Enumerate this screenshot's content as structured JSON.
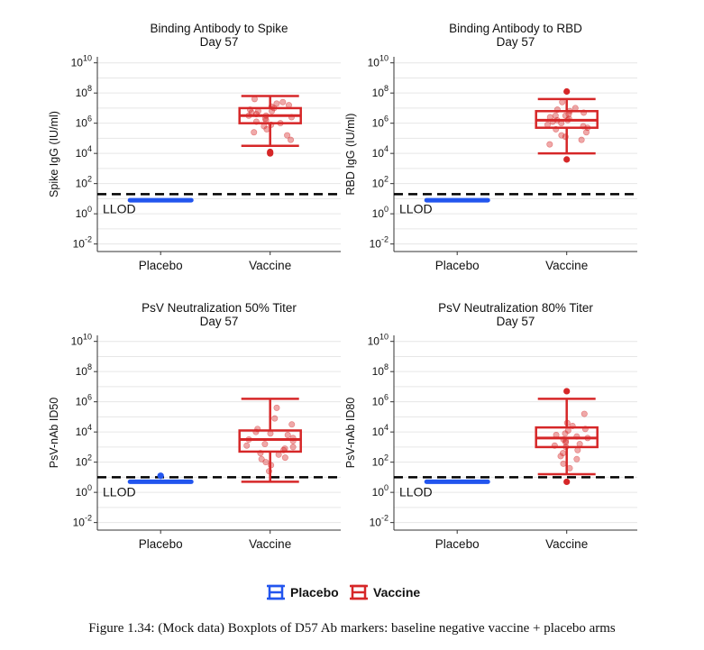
{
  "figure": {
    "caption": "Figure 1.34: (Mock data) Boxplots of D57 Ab markers: baseline negative vaccine + placebo arms"
  },
  "legend": {
    "entries": [
      {
        "label": "Placebo",
        "color": "#2255ee"
      },
      {
        "label": "Vaccine",
        "color": "#d62728"
      }
    ]
  },
  "colors": {
    "placebo": "#2255ee",
    "vaccine": "#d62728",
    "grid": "#e6e6e6",
    "axis": "#333333"
  },
  "chart_data": [
    {
      "type": "box",
      "title": "Binding Antibody to Spike",
      "subtitle": "Day 57",
      "ylabel": "Spike IgG (IU/ml)",
      "yscale": "log10",
      "ylim_exp": [
        -2.5,
        10.4
      ],
      "ytick_exponents": [
        -2,
        0,
        2,
        4,
        6,
        8,
        10
      ],
      "categories": [
        "Placebo",
        "Vaccine"
      ],
      "lod_exp": 1.3,
      "lod_label": "LLOD",
      "boxes": [
        {
          "group": "Placebo",
          "min_exp": 0.9,
          "q1_exp": 0.9,
          "median_exp": 0.9,
          "q3_exp": 0.9,
          "max_exp": 0.9,
          "outliers_exp": [],
          "points_exp": []
        },
        {
          "group": "Vaccine",
          "min_exp": 4.5,
          "q1_exp": 6.0,
          "median_exp": 6.5,
          "q3_exp": 7.0,
          "max_exp": 7.8,
          "outliers_exp": [
            4.1,
            4.0
          ],
          "points_exp": [
            7.6,
            7.4,
            7.3,
            7.2,
            7.1,
            7.0,
            6.9,
            6.8,
            6.8,
            6.7,
            6.6,
            6.5,
            6.5,
            6.4,
            6.3,
            6.2,
            6.1,
            6.0,
            5.9,
            5.8,
            5.6,
            5.4,
            5.2,
            4.9
          ]
        }
      ]
    },
    {
      "type": "box",
      "title": "Binding Antibody to RBD",
      "subtitle": "Day 57",
      "ylabel": "RBD IgG (IU/ml)",
      "yscale": "log10",
      "ylim_exp": [
        -2.5,
        10.4
      ],
      "ytick_exponents": [
        -2,
        0,
        2,
        4,
        6,
        8,
        10
      ],
      "categories": [
        "Placebo",
        "Vaccine"
      ],
      "lod_exp": 1.3,
      "lod_label": "LLOD",
      "boxes": [
        {
          "group": "Placebo",
          "min_exp": 0.9,
          "q1_exp": 0.9,
          "median_exp": 0.9,
          "q3_exp": 0.9,
          "max_exp": 0.9,
          "outliers_exp": [],
          "points_exp": []
        },
        {
          "group": "Vaccine",
          "min_exp": 4.0,
          "q1_exp": 5.7,
          "median_exp": 6.2,
          "q3_exp": 6.8,
          "max_exp": 7.6,
          "outliers_exp": [
            8.1,
            3.6
          ],
          "points_exp": [
            7.4,
            7.0,
            6.9,
            6.8,
            6.7,
            6.6,
            6.5,
            6.5,
            6.4,
            6.3,
            6.2,
            6.2,
            6.1,
            6.0,
            5.9,
            5.8,
            5.7,
            5.6,
            5.4,
            5.2,
            5.1,
            4.9,
            4.6
          ]
        }
      ]
    },
    {
      "type": "box",
      "title": "PsV Neutralization 50% Titer",
      "subtitle": "Day 57",
      "ylabel": "PsV-nAb ID50",
      "yscale": "log10",
      "ylim_exp": [
        -2.5,
        10.4
      ],
      "ytick_exponents": [
        -2,
        0,
        2,
        4,
        6,
        8,
        10
      ],
      "categories": [
        "Placebo",
        "Vaccine"
      ],
      "lod_exp": 1.0,
      "lod_label": "LLOD",
      "boxes": [
        {
          "group": "Placebo",
          "min_exp": 0.7,
          "q1_exp": 0.7,
          "median_exp": 0.7,
          "q3_exp": 0.7,
          "max_exp": 0.7,
          "outliers_exp": [
            1.1
          ],
          "points_exp": []
        },
        {
          "group": "Vaccine",
          "min_exp": 0.7,
          "q1_exp": 2.7,
          "median_exp": 3.5,
          "q3_exp": 4.1,
          "max_exp": 6.2,
          "outliers_exp": [],
          "points_exp": [
            5.6,
            4.9,
            4.5,
            4.2,
            4.0,
            3.9,
            3.8,
            3.6,
            3.5,
            3.4,
            3.2,
            3.1,
            3.0,
            2.9,
            2.8,
            2.6,
            2.5,
            2.3,
            2.2,
            2.0,
            1.8,
            1.4
          ]
        }
      ]
    },
    {
      "type": "box",
      "title": "PsV Neutralization 80% Titer",
      "subtitle": "Day 57",
      "ylabel": "PsV-nAb ID80",
      "yscale": "log10",
      "ylim_exp": [
        -2.5,
        10.4
      ],
      "ytick_exponents": [
        -2,
        0,
        2,
        4,
        6,
        8,
        10
      ],
      "categories": [
        "Placebo",
        "Vaccine"
      ],
      "lod_exp": 1.0,
      "lod_label": "LLOD",
      "boxes": [
        {
          "group": "Placebo",
          "min_exp": 0.7,
          "q1_exp": 0.7,
          "median_exp": 0.7,
          "q3_exp": 0.7,
          "max_exp": 0.7,
          "outliers_exp": [],
          "points_exp": []
        },
        {
          "group": "Vaccine",
          "min_exp": 1.2,
          "q1_exp": 3.0,
          "median_exp": 3.6,
          "q3_exp": 4.3,
          "max_exp": 6.2,
          "outliers_exp": [
            6.7,
            0.7
          ],
          "points_exp": [
            5.2,
            4.6,
            4.4,
            4.2,
            4.1,
            3.9,
            3.8,
            3.7,
            3.6,
            3.5,
            3.4,
            3.3,
            3.2,
            3.1,
            3.0,
            2.8,
            2.6,
            2.4,
            2.2,
            1.9,
            1.6
          ]
        }
      ]
    }
  ]
}
